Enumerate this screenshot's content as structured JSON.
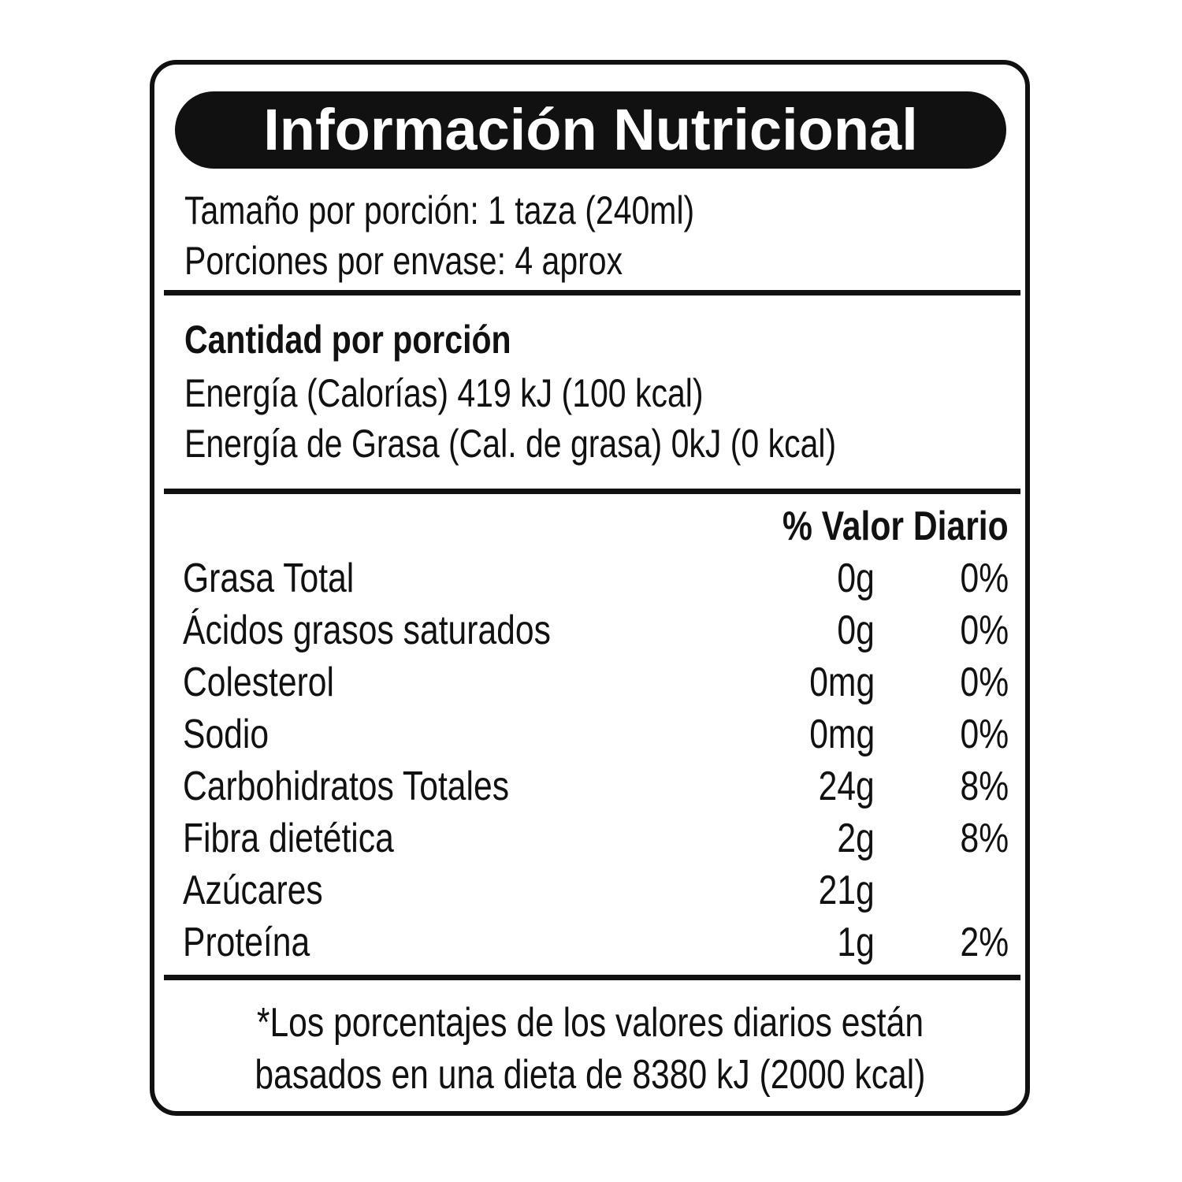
{
  "title": "Información Nutricional",
  "serving_size": "Tamaño por porción: 1 taza (240ml)",
  "servings": "Porciones por envase: 4 aprox",
  "amount_header": "Cantidad por porción",
  "energy": "Energía (Calorías) 419 kJ (100 kcal)",
  "fat_energy": "Energía de Grasa (Cal. de grasa) 0kJ (0 kcal)",
  "dv_header": "% Valor Diario",
  "nutrients": [
    {
      "name": "Grasa Total",
      "amount": "0g",
      "dv": "0%"
    },
    {
      "name": "Ácidos grasos saturados",
      "amount": "0g",
      "dv": "0%"
    },
    {
      "name": "Colesterol",
      "amount": "0mg",
      "dv": "0%"
    },
    {
      "name": "Sodio",
      "amount": "0mg",
      "dv": "0%"
    },
    {
      "name": "Carbohidratos Totales",
      "amount": "24g",
      "dv": "8%"
    },
    {
      "name": "Fibra dietética",
      "amount": "2g",
      "dv": "8%"
    },
    {
      "name": "Azúcares",
      "amount": "21g",
      "dv": ""
    },
    {
      "name": "Proteína",
      "amount": "1g",
      "dv": "2%"
    }
  ],
  "footnote": [
    "*Los porcentajes de los valores diarios están",
    "basados en una dieta de 8380 kJ (2000 kcal)"
  ]
}
